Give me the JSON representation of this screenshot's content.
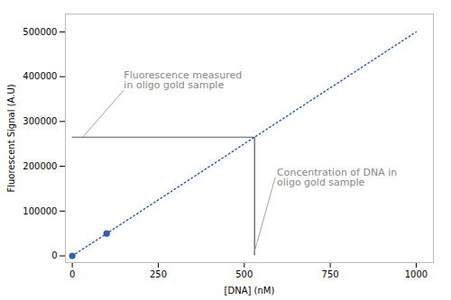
{
  "chart_data": {
    "type": "scatter",
    "xlabel": "[DNA] (nM)",
    "ylabel": "Fluorescent Signal (A.U)",
    "series": [
      {
        "type": "line",
        "x": [
          0,
          1000
        ],
        "values": [
          0,
          500000
        ],
        "color": "#3060b0",
        "line_style": "dotted"
      },
      {
        "type": "scatter",
        "x": [
          0,
          100
        ],
        "values": [
          0,
          50000
        ],
        "color": "#3060b0",
        "marker": "circle"
      }
    ],
    "xlim": [
      -20,
      1050
    ],
    "ylim": [
      -15000,
      540000
    ],
    "xticks": [
      0,
      250,
      500,
      750,
      1000
    ],
    "yticks": [
      0,
      100000,
      200000,
      300000,
      400000,
      500000
    ],
    "indicator": {
      "x": 530,
      "y": 265000,
      "from": [
        0,
        0
      ],
      "color": "#555555"
    },
    "annotations": [
      {
        "text": "Fluorescence measured\nin oligo gold sample",
        "color": "#888888",
        "arrow_color": "#999999"
      },
      {
        "text": "Concentration of DNA in\noligo gold sample",
        "color": "#888888",
        "arrow_color": "#999999"
      }
    ],
    "background_color": "#ffffff"
  }
}
